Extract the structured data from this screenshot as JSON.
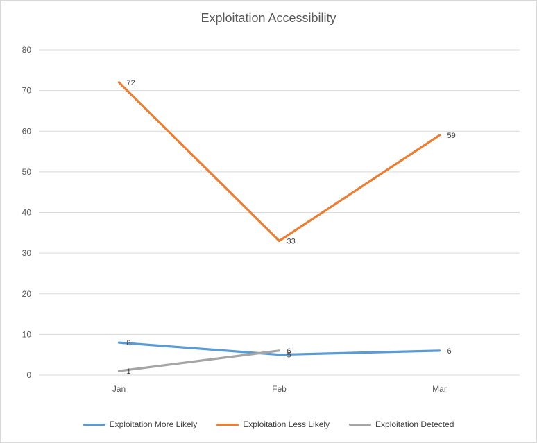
{
  "chart_data": {
    "type": "line",
    "title": "Exploitation Accessibility",
    "categories": [
      "Jan",
      "Feb",
      "Mar"
    ],
    "series": [
      {
        "name": "Exploitation More Likely",
        "color": "#5B9BD5",
        "values": [
          8,
          5,
          6
        ]
      },
      {
        "name": "Exploitation Less Likely",
        "color": "#ED7D31",
        "values": [
          72,
          33,
          59
        ]
      },
      {
        "name": "Exploitation Detected",
        "color": "#A5A5A5",
        "values": [
          1,
          6,
          null
        ]
      }
    ],
    "ylim": [
      0,
      80
    ],
    "yticks": [
      0,
      10,
      20,
      30,
      40,
      50,
      60,
      70,
      80
    ],
    "grid": true,
    "legend_position": "bottom",
    "data_labels": true
  },
  "colors": {
    "grid": "#D9D9D9",
    "axis_text": "#595959",
    "title_text": "#595959",
    "label_text": "#404040",
    "border": "#D9D9D9",
    "background": "#FFFFFF"
  }
}
